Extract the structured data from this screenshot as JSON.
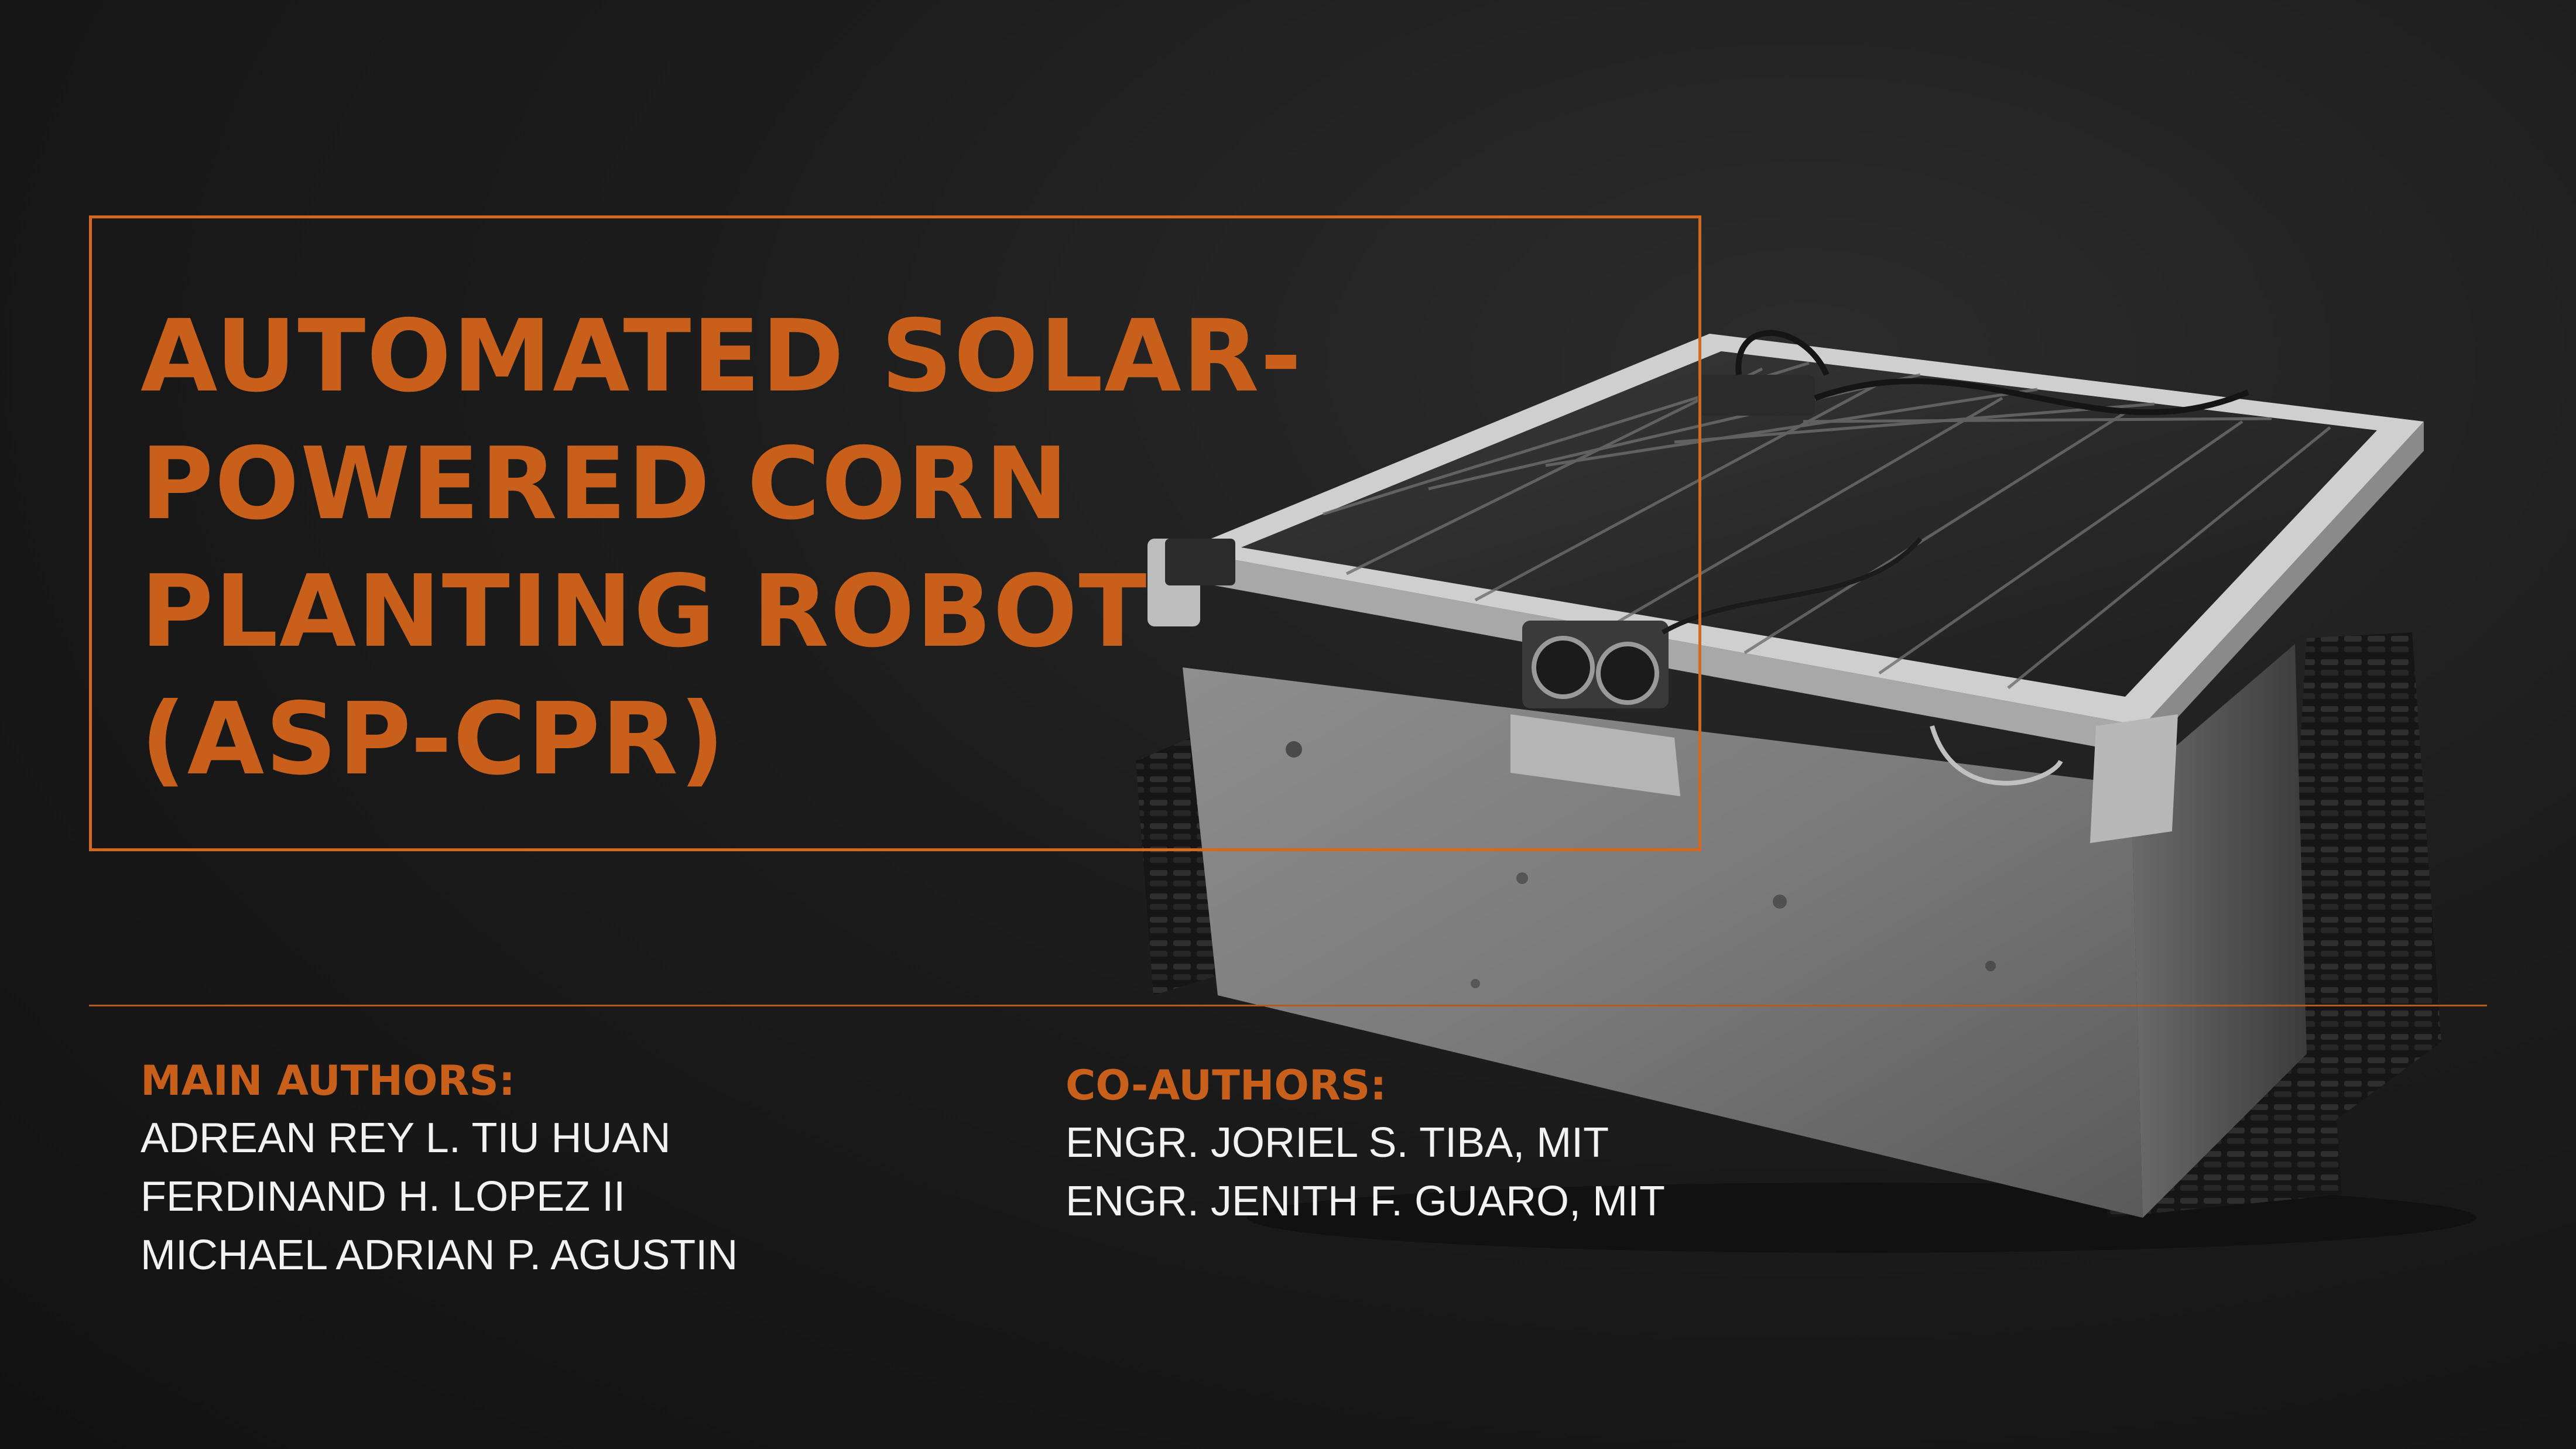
{
  "title": {
    "lines": [
      "AUTOMATED SOLAR-",
      "POWERED CORN",
      "PLANTING ROBOT",
      "(ASP-CPR)"
    ]
  },
  "main_authors": {
    "heading": "MAIN AUTHORS:",
    "names": [
      "ADREAN REY L. TIU HUAN",
      "FERDINAND H. LOPEZ II",
      "MICHAEL ADRIAN P. AGUSTIN"
    ]
  },
  "co_authors": {
    "heading": "CO-AUTHORS:",
    "names": [
      "ENGR. JORIEL S. TIBA, MIT",
      "ENGR. JENITH F. GUARO, MIT"
    ]
  },
  "colors": {
    "accent": "#c8601c",
    "background": "#1a1a1a",
    "text": "#f2f2f2"
  }
}
